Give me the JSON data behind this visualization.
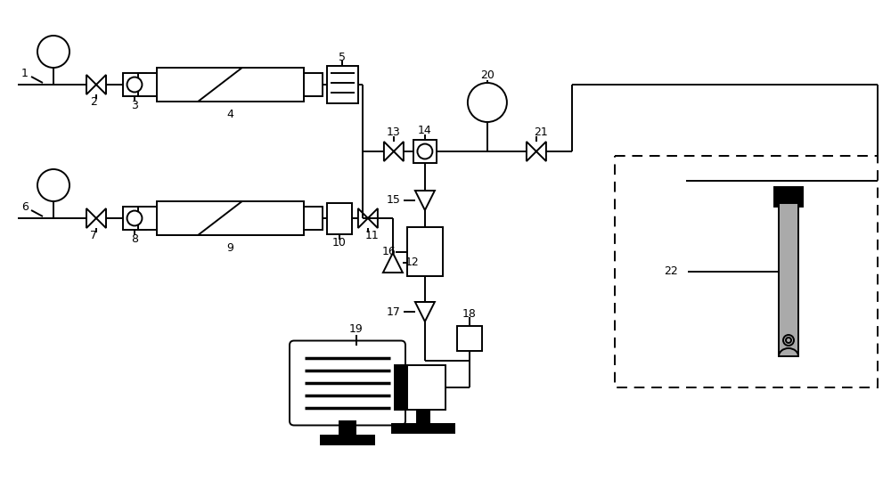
{
  "bg_color": "#ffffff",
  "line_color": "#000000",
  "lw": 1.4,
  "fig_width": 10.0,
  "fig_height": 5.58,
  "dpi": 100
}
